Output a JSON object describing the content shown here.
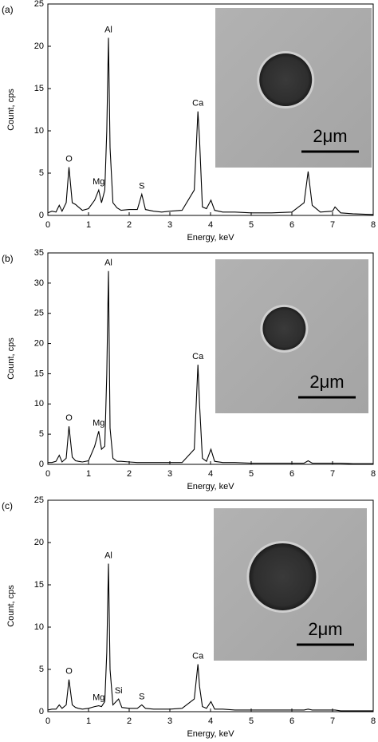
{
  "chart_data": [
    {
      "type": "line",
      "panel_label": "(a)",
      "xlabel": "Energy, keV",
      "ylabel": "Count, cps",
      "color": "#000000",
      "xlim": [
        0,
        8
      ],
      "xticks": [
        0,
        1,
        2,
        3,
        4,
        5,
        6,
        7,
        8
      ],
      "ylim": [
        0,
        25
      ],
      "yticks": [
        0,
        5,
        10,
        15,
        20,
        25
      ],
      "x": [
        0,
        0.1,
        0.2,
        0.28,
        0.35,
        0.45,
        0.52,
        0.6,
        0.68,
        0.75,
        0.85,
        1.0,
        1.15,
        1.25,
        1.32,
        1.4,
        1.45,
        1.49,
        1.53,
        1.6,
        1.7,
        1.8,
        2.0,
        2.2,
        2.31,
        2.4,
        2.6,
        2.8,
        3.0,
        3.3,
        3.6,
        3.69,
        3.73,
        3.8,
        3.9,
        4.01,
        4.1,
        4.3,
        4.6,
        5.0,
        5.5,
        6.0,
        6.3,
        6.4,
        6.5,
        6.7,
        7.0,
        7.06,
        7.2,
        7.5,
        8.0
      ],
      "values": [
        0.3,
        0.5,
        0.4,
        1.2,
        0.5,
        1.5,
        5.7,
        1.5,
        1.3,
        1,
        0.6,
        0.8,
        1.8,
        3,
        1.5,
        3,
        10,
        21,
        8,
        1.5,
        0.9,
        0.6,
        0.7,
        0.7,
        2.5,
        0.7,
        0.5,
        0.4,
        0.5,
        0.6,
        3,
        12.3,
        9,
        1,
        0.8,
        1.8,
        0.6,
        0.4,
        0.4,
        0.3,
        0.3,
        0.4,
        1.5,
        5.2,
        1.2,
        0.4,
        0.5,
        1,
        0.3,
        0.2,
        0.1
      ],
      "annotations": [
        {
          "text": "O",
          "x": 0.52
        },
        {
          "text": "Mg",
          "x": 1.25
        },
        {
          "text": "Al",
          "x": 1.49
        },
        {
          "text": "S",
          "x": 2.31
        },
        {
          "text": "Ca",
          "x": 3.69
        }
      ],
      "inset_label": "2μm"
    },
    {
      "type": "line",
      "panel_label": "(b)",
      "xlabel": "Energy, keV",
      "ylabel": "Count, cps",
      "color": "#000000",
      "xlim": [
        0,
        8
      ],
      "xticks": [
        0,
        1,
        2,
        3,
        4,
        5,
        6,
        7,
        8
      ],
      "ylim": [
        0,
        35
      ],
      "yticks": [
        0,
        5,
        10,
        15,
        20,
        25,
        30,
        35
      ],
      "x": [
        0,
        0.1,
        0.2,
        0.28,
        0.35,
        0.45,
        0.52,
        0.6,
        0.68,
        0.75,
        0.85,
        1.0,
        1.15,
        1.25,
        1.32,
        1.4,
        1.45,
        1.49,
        1.53,
        1.6,
        1.7,
        1.8,
        2.0,
        2.2,
        2.31,
        2.4,
        2.6,
        2.8,
        3.0,
        3.3,
        3.6,
        3.69,
        3.73,
        3.8,
        3.9,
        4.01,
        4.1,
        4.3,
        4.6,
        5.0,
        5.5,
        6.0,
        6.3,
        6.4,
        6.5,
        6.7,
        7.0,
        7.06,
        7.2,
        7.5,
        8.0
      ],
      "values": [
        0.3,
        0.3,
        0.5,
        1.5,
        0.4,
        1,
        6.3,
        1.2,
        0.6,
        0.5,
        0.4,
        0.6,
        3,
        5.5,
        2.5,
        3,
        15,
        32,
        6,
        1,
        0.5,
        0.5,
        0.4,
        0.3,
        0.3,
        0.3,
        0.3,
        0.3,
        0.3,
        0.3,
        2.5,
        16.5,
        10,
        1,
        0.5,
        2.5,
        0.5,
        0.3,
        0.3,
        0.2,
        0.2,
        0.2,
        0.2,
        0.6,
        0.2,
        0.2,
        0.2,
        0.2,
        0.2,
        0.1,
        0.1
      ],
      "annotations": [
        {
          "text": "O",
          "x": 0.52
        },
        {
          "text": "Mg",
          "x": 1.25
        },
        {
          "text": "Al",
          "x": 1.49
        },
        {
          "text": "Ca",
          "x": 3.69
        }
      ],
      "inset_label": "2μm"
    },
    {
      "type": "line",
      "panel_label": "(c)",
      "xlabel": "Energy, keV",
      "ylabel": "Count, cps",
      "color": "#000000",
      "xlim": [
        0,
        8
      ],
      "xticks": [
        0,
        1,
        2,
        3,
        4,
        5,
        6,
        7,
        8
      ],
      "ylim": [
        0,
        25
      ],
      "yticks": [
        0,
        5,
        10,
        15,
        20,
        25
      ],
      "x": [
        0,
        0.1,
        0.2,
        0.28,
        0.35,
        0.45,
        0.52,
        0.6,
        0.68,
        0.75,
        0.85,
        1.0,
        1.15,
        1.25,
        1.32,
        1.4,
        1.45,
        1.49,
        1.53,
        1.6,
        1.74,
        1.82,
        2.0,
        2.2,
        2.31,
        2.4,
        2.6,
        2.8,
        3.0,
        3.3,
        3.6,
        3.69,
        3.73,
        3.8,
        3.9,
        4.01,
        4.1,
        4.3,
        4.6,
        5.0,
        5.5,
        6.0,
        6.3,
        6.4,
        6.5,
        6.7,
        7.0,
        7.06,
        7.2,
        7.5,
        8.0
      ],
      "values": [
        0.2,
        0.3,
        0.3,
        0.8,
        0.4,
        0.8,
        3.8,
        0.8,
        0.5,
        0.4,
        0.3,
        0.4,
        0.6,
        0.7,
        0.6,
        1.2,
        7,
        17.5,
        5,
        0.8,
        1.5,
        0.5,
        0.4,
        0.4,
        0.8,
        0.4,
        0.3,
        0.3,
        0.3,
        0.4,
        1.5,
        5.6,
        3,
        0.6,
        0.4,
        1.2,
        0.3,
        0.3,
        0.2,
        0.2,
        0.2,
        0.2,
        0.2,
        0.3,
        0.2,
        0.2,
        0.2,
        0.2,
        0.1,
        0.1,
        0.1
      ],
      "annotations": [
        {
          "text": "O",
          "x": 0.52
        },
        {
          "text": "Mg",
          "x": 1.25
        },
        {
          "text": "Al",
          "x": 1.49
        },
        {
          "text": "Si",
          "x": 1.74
        },
        {
          "text": "S",
          "x": 2.31
        },
        {
          "text": "Ca",
          "x": 3.69
        }
      ],
      "inset_label": "2μm"
    }
  ]
}
